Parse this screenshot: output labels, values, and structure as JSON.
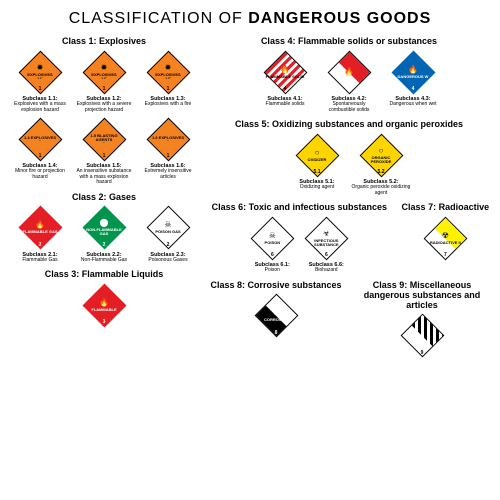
{
  "title": {
    "prefix": "CLASSIFICATION OF",
    "emphasis": "DANGEROUS GOODS"
  },
  "colors": {
    "orange": "#f58220",
    "red": "#e31e24",
    "green": "#00954d",
    "yellow": "#ffd500",
    "blue": "#0066b3",
    "white": "#ffffff",
    "black": "#000000",
    "yellow_rad": "#fff200"
  },
  "classes": {
    "c1": {
      "header_name": "Class 1:",
      "header_desc": "Explosives",
      "row1": [
        {
          "bg": "orange",
          "border": "black",
          "icon": "✹",
          "label": "EXPLOSIVES",
          "sub": "1.1*",
          "num": "1",
          "st": "Subclass 1.1:",
          "sd": "Explosives with a mass explosion hazard"
        },
        {
          "bg": "orange",
          "border": "black",
          "icon": "✹",
          "label": "EXPLOSIVES",
          "sub": "1.2*",
          "num": "1",
          "st": "Subclass 1.2:",
          "sd": "Explosives with a severe projection hazard"
        },
        {
          "bg": "orange",
          "border": "black",
          "icon": "✹",
          "label": "EXPLOSIVES",
          "sub": "1.3*",
          "num": "1",
          "st": "Subclass 1.3:",
          "sd": "Explosives with a fire"
        }
      ],
      "row2": [
        {
          "bg": "orange",
          "border": "black",
          "icon": "",
          "label": "1.4 EXPLOSIVES",
          "sub": "*",
          "num": "1",
          "st": "Subclass 1.4:",
          "sd": "Minor fire or projection hazard"
        },
        {
          "bg": "orange",
          "border": "black",
          "icon": "",
          "label": "1.5 BLASTING AGENTS",
          "sub": "*",
          "num": "1",
          "st": "Subclass 1.5:",
          "sd": "An insensitive substance with a mass explosion hazard"
        },
        {
          "bg": "orange",
          "border": "black",
          "icon": "",
          "label": "1.6 EXPLOSIVES",
          "sub": "*",
          "num": "1",
          "st": "Subclass 1.6:",
          "sd": "Extremely insensitive articles"
        }
      ]
    },
    "c2": {
      "header_name": "Class 2:",
      "header_desc": "Gases",
      "row": [
        {
          "bg": "red",
          "fg": "white",
          "border": "red",
          "icon": "🔥",
          "label": "FLAMMABLE GAS",
          "num": "2",
          "st": "Subclass 2.1:",
          "sd": "Flammable Gas"
        },
        {
          "bg": "green",
          "fg": "white",
          "border": "green",
          "icon": "⬤",
          "label": "NON-FLAMMABLE GAS",
          "num": "2",
          "st": "Subclass 2.2:",
          "sd": "Non-Flammable Gas"
        },
        {
          "bg": "white",
          "fg": "black",
          "border": "black",
          "icon": "☠",
          "label": "POISON GAS",
          "num": "2",
          "st": "Subclass 2.3:",
          "sd": "Poisonous Gases"
        }
      ]
    },
    "c3": {
      "header_name": "Class 3:",
      "header_desc": "Flammable Liquids",
      "row": [
        {
          "bg": "red",
          "fg": "white",
          "border": "red",
          "icon": "🔥",
          "label": "FLAMMABLE",
          "num": "3"
        }
      ]
    },
    "c4": {
      "header_name": "Class 4:",
      "header_desc": "Flammable solids or substances",
      "row": [
        {
          "style": "stripes",
          "fg": "black",
          "icon": "🔥",
          "label": "FLAMMABLE SOLID",
          "num": "4",
          "st": "Subclass 4.1:",
          "sd": "Flammable solids"
        },
        {
          "style": "halfredwhite",
          "fg": "white",
          "icon": "🔥",
          "label": "",
          "num": "4",
          "st": "Subclass 4.2:",
          "sd": "Spontaneously combustible solids"
        },
        {
          "bg": "blue",
          "fg": "white",
          "border": "blue",
          "icon": "🔥",
          "label": "DANGEROUS W",
          "num": "4",
          "st": "Subclass 4.3:",
          "sd": "Dangerous when wet"
        }
      ]
    },
    "c5": {
      "header_name": "Class 5:",
      "header_desc": "Oxidizing substances and organic peroxides",
      "row": [
        {
          "bg": "yellow",
          "fg": "black",
          "border": "black",
          "icon": "○",
          "label": "OXIDIZER",
          "num": "5.1",
          "st": "Subclass 5.1:",
          "sd": "Oxidizing agent"
        },
        {
          "bg": "yellow",
          "fg": "black",
          "border": "black",
          "icon": "○",
          "label": "ORGANIC PEROXIDE",
          "num": "5.2",
          "st": "Subclass 5.2:",
          "sd": "Organic peroxide oxidizing agent"
        }
      ]
    },
    "c6": {
      "header_name": "Class 6:",
      "header_desc": "Toxic and infectious substances",
      "row": [
        {
          "bg": "white",
          "fg": "black",
          "border": "black",
          "icon": "☠",
          "label": "POISON",
          "num": "6",
          "st": "Subclass 6.1:",
          "sd": "Poison"
        },
        {
          "bg": "white",
          "fg": "black",
          "border": "black",
          "icon": "☣",
          "label": "INFECTIOUS SUBSTANCE",
          "num": "6",
          "st": "Subclass 6.6:",
          "sd": "Biohazard"
        }
      ]
    },
    "c7": {
      "header_name": "Class 7:",
      "header_desc": "Radioactive",
      "row": [
        {
          "style": "halfyellowwhite",
          "fg": "black",
          "icon": "☢",
          "label": "RADIOACTIVE II",
          "num": "7"
        }
      ]
    },
    "c8": {
      "header_name": "Class 8:",
      "header_desc": "Corrosive substances",
      "row": [
        {
          "style": "halfwhiteblack",
          "fg": "white",
          "icon": "⚗",
          "label": "CORROSIVE",
          "num": "8"
        }
      ]
    },
    "c9": {
      "header_name": "Class 9:",
      "header_desc": "Miscellaneous dangerous substances and articles",
      "row": [
        {
          "style": "bwstripes",
          "fg": "black",
          "icon": "",
          "label": "",
          "num": "9"
        }
      ]
    }
  }
}
